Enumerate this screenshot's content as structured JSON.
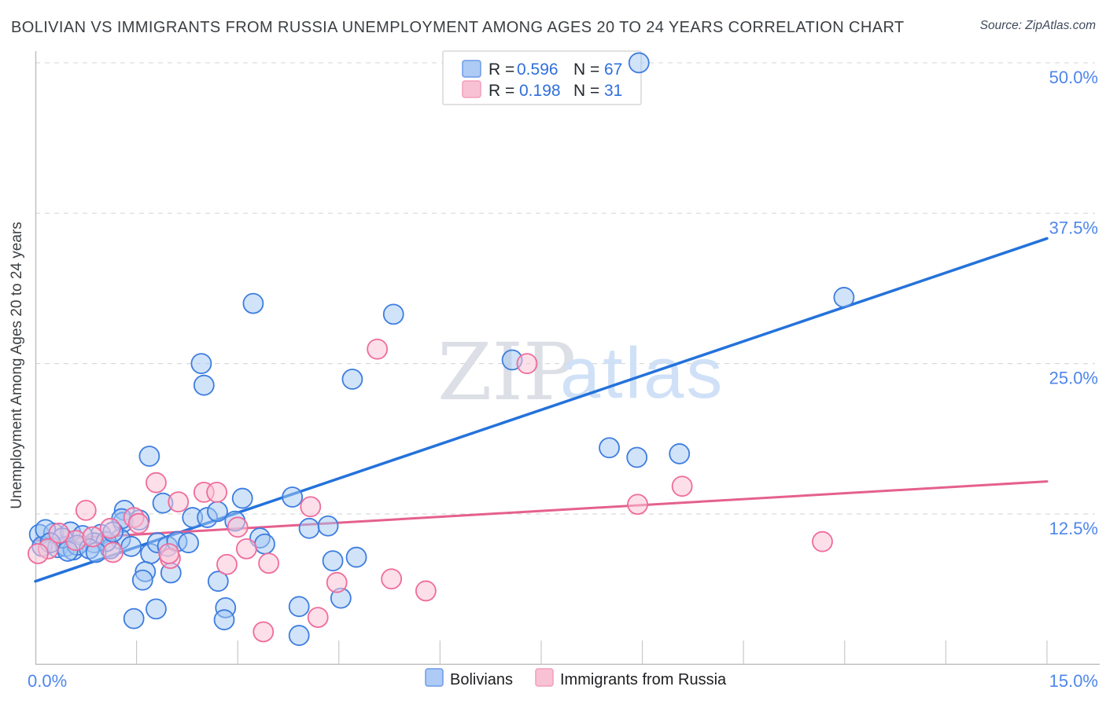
{
  "header": {
    "title": "BOLIVIAN VS IMMIGRANTS FROM RUSSIA UNEMPLOYMENT AMONG AGES 20 TO 24 YEARS CORRELATION CHART",
    "source": "Source: ZipAtlas.com"
  },
  "watermark": {
    "zip": "ZIP",
    "atlas": "atlas"
  },
  "stats_legend": {
    "rows": [
      {
        "r_label": "R =",
        "r_value": "0.596",
        "n_label": "N =",
        "n_value": "67",
        "swatch_fill": "#aecbf5",
        "swatch_stroke": "#6b9ae8"
      },
      {
        "r_label": "R =",
        "r_value": "0.198",
        "n_label": "N =",
        "n_value": "31",
        "swatch_fill": "#f9c2d4",
        "swatch_stroke": "#f29ebc"
      }
    ]
  },
  "bottom_legend": {
    "items": [
      {
        "label": "Bolivians",
        "swatch_fill": "#aecbf5",
        "swatch_stroke": "#6b9ae8"
      },
      {
        "label": "Immigrants from Russia",
        "swatch_fill": "#f9c2d4",
        "swatch_stroke": "#f29ebc"
      }
    ]
  },
  "axes": {
    "x_min_label": "0.0%",
    "x_max_label": "15.0%",
    "y_label": "Unemployment Among Ages 20 to 24 years"
  },
  "chart_data": {
    "type": "scatter",
    "title": "Bolivian vs Immigrants from Russia Unemployment Among Ages 20 to 24 years",
    "xlabel": "",
    "ylabel": "Unemployment Among Ages 20 to 24 years",
    "xlim": [
      0,
      15
    ],
    "ylim": [
      0,
      52
    ],
    "grid": true,
    "y_gridlines": [
      12.5,
      25,
      37.5,
      50
    ],
    "y_tick_labels": [
      "12.5%",
      "25.0%",
      "37.5%",
      "50.0%"
    ],
    "x_ticks": [
      1.5,
      3,
      4.5,
      6,
      7.5,
      9,
      10.5,
      12,
      13.5,
      15
    ],
    "x_axis_labels": [
      "0.0%",
      "15.0%"
    ],
    "legend_position": "bottom",
    "series": [
      {
        "name": "Bolivians",
        "R": 0.596,
        "N": 67,
        "fill": "rgba(164,199,242,0.5)",
        "stroke": "#3d7de0",
        "points": [
          [
            0.06,
            10.8
          ],
          [
            0.27,
            10.9
          ],
          [
            0.52,
            11.0
          ],
          [
            0.1,
            9.8
          ],
          [
            0.33,
            9.7
          ],
          [
            0.45,
            9.8
          ],
          [
            0.56,
            9.5
          ],
          [
            0.97,
            10.8
          ],
          [
            0.87,
            10.1
          ],
          [
            1.32,
            12.8
          ],
          [
            1.3,
            11.8
          ],
          [
            1.89,
            13.4
          ],
          [
            1.26,
            10.4
          ],
          [
            1.11,
            9.6
          ],
          [
            1.42,
            9.8
          ],
          [
            1.71,
            9.2
          ],
          [
            1.81,
            10.1
          ],
          [
            1.96,
            9.8
          ],
          [
            2.1,
            10.2
          ],
          [
            2.27,
            10.1
          ],
          [
            2.33,
            12.2
          ],
          [
            2.55,
            12.2
          ],
          [
            2.7,
            12.7
          ],
          [
            2.96,
            11.9
          ],
          [
            3.07,
            13.8
          ],
          [
            1.69,
            17.3
          ],
          [
            3.33,
            10.5
          ],
          [
            3.4,
            10.0
          ],
          [
            3.81,
            13.9
          ],
          [
            4.06,
            11.3
          ],
          [
            4.34,
            11.5
          ],
          [
            1.63,
            7.7
          ],
          [
            1.59,
            7.0
          ],
          [
            2.01,
            7.6
          ],
          [
            1.79,
            4.6
          ],
          [
            1.46,
            3.8
          ],
          [
            2.71,
            6.9
          ],
          [
            2.82,
            4.7
          ],
          [
            2.8,
            3.7
          ],
          [
            3.91,
            4.8
          ],
          [
            3.91,
            2.4
          ],
          [
            4.41,
            8.6
          ],
          [
            4.76,
            8.9
          ],
          [
            4.53,
            5.5
          ],
          [
            3.23,
            30.0
          ],
          [
            5.31,
            29.1
          ],
          [
            2.46,
            25.0
          ],
          [
            2.5,
            23.2
          ],
          [
            4.7,
            23.7
          ],
          [
            7.07,
            25.3
          ],
          [
            8.51,
            18.0
          ],
          [
            8.92,
            17.2
          ],
          [
            9.55,
            17.5
          ],
          [
            11.99,
            30.5
          ],
          [
            8.95,
            50.0
          ],
          [
            1.28,
            12.1
          ],
          [
            1.54,
            12.0
          ],
          [
            0.15,
            11.2
          ],
          [
            0.4,
            10.5
          ],
          [
            0.7,
            10.7
          ],
          [
            0.62,
            9.9
          ],
          [
            0.8,
            9.6
          ],
          [
            1.05,
            10.2
          ],
          [
            0.22,
            10.1
          ],
          [
            0.48,
            9.4
          ],
          [
            1.15,
            11.0
          ],
          [
            0.9,
            9.3
          ]
        ]
      },
      {
        "name": "Immigrants from Russia",
        "R": 0.198,
        "N": 31,
        "fill": "rgba(249,196,215,0.55)",
        "stroke": "#ef6c9c",
        "points": [
          [
            1.79,
            15.1
          ],
          [
            2.12,
            13.5
          ],
          [
            0.75,
            12.8
          ],
          [
            1.46,
            12.2
          ],
          [
            1.53,
            11.7
          ],
          [
            2.5,
            14.3
          ],
          [
            2.69,
            14.3
          ],
          [
            3.0,
            11.4
          ],
          [
            3.13,
            9.6
          ],
          [
            2.84,
            8.3
          ],
          [
            3.46,
            8.4
          ],
          [
            2.0,
            8.8
          ],
          [
            3.38,
            2.7
          ],
          [
            4.08,
            13.1
          ],
          [
            4.47,
            6.8
          ],
          [
            5.28,
            7.1
          ],
          [
            5.79,
            6.1
          ],
          [
            4.19,
            3.9
          ],
          [
            5.07,
            26.2
          ],
          [
            7.29,
            25.0
          ],
          [
            8.93,
            13.3
          ],
          [
            9.59,
            14.8
          ],
          [
            11.67,
            10.2
          ],
          [
            0.19,
            9.6
          ],
          [
            0.04,
            9.2
          ],
          [
            1.11,
            11.3
          ],
          [
            1.15,
            9.3
          ],
          [
            1.98,
            9.2
          ],
          [
            0.6,
            10.3
          ],
          [
            0.35,
            10.9
          ],
          [
            0.85,
            10.6
          ]
        ]
      }
    ],
    "trendlines": [
      {
        "series": "Bolivians",
        "x": [
          0,
          15
        ],
        "y": [
          6.9,
          35.4
        ],
        "color": "#2472db",
        "width": 3.5
      },
      {
        "series": "Immigrants from Russia",
        "x": [
          0,
          15
        ],
        "y": [
          10.3,
          15.2
        ],
        "color": "#e5608e",
        "width": 3
      }
    ],
    "colors": {
      "grid": "#d9d9d9",
      "axis": "#bdbdbd",
      "tick": "#c9c9c9",
      "tick_label": "#4f86ec"
    }
  }
}
